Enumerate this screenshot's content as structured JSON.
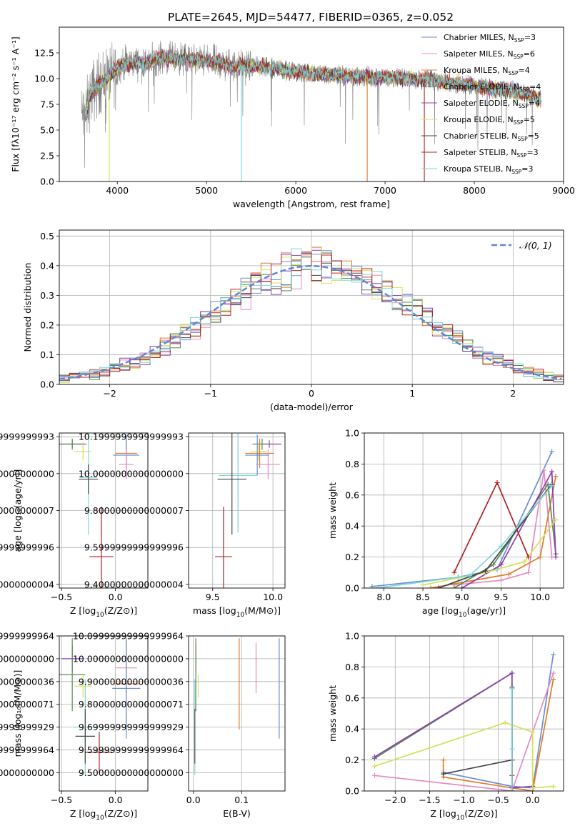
{
  "figure_title": "PLATE=2645, MJD=54477, FIBERID=0365, z=0.052",
  "chart_data": [
    {
      "id": "spectrum",
      "type": "line",
      "xlabel": "wavelength [Angstrom, rest frame]",
      "ylabel": "Flux [fλ10⁻¹⁷ erg cm⁻² s⁻¹ A⁻¹]",
      "xlim": [
        3350,
        9000
      ],
      "ylim": [
        0,
        15
      ],
      "xticks": [
        4000,
        5000,
        6000,
        7000,
        8000,
        9000
      ],
      "yticks": [
        0.0,
        2.5,
        5.0,
        7.5,
        10.0,
        12.5
      ],
      "grid": false,
      "legend_position": "right",
      "legend": [
        {
          "pre": "Chabrier MILES, N",
          "sub": "SSP",
          "post": "=3",
          "color": "#6a8fd6"
        },
        {
          "pre": "Salpeter MILES, N",
          "sub": "SSP",
          "post": "=6",
          "color": "#e78ac3"
        },
        {
          "pre": "Kroupa MILES, N",
          "sub": "SSP",
          "post": "=4",
          "color": "#e07b2a"
        },
        {
          "pre": "Chabrier ELODIE, N",
          "sub": "SSP",
          "post": "=4",
          "color": "#5b8a55"
        },
        {
          "pre": "Salpeter ELODIE, N",
          "sub": "SSP",
          "post": "=4",
          "color": "#8e3fb0"
        },
        {
          "pre": "Kroupa ELODIE, N",
          "sub": "SSP",
          "post": "=5",
          "color": "#d4e157"
        },
        {
          "pre": "Chabrier STELIB, N",
          "sub": "SSP",
          "post": "=5",
          "color": "#444444"
        },
        {
          "pre": "Salpeter STELIB, N",
          "sub": "SSP",
          "post": "=3",
          "color": "#b22222"
        },
        {
          "pre": "Kroupa STELIB, N",
          "sub": "SSP",
          "post": "=3",
          "color": "#7fd6d6"
        }
      ],
      "continuum": [
        [
          3650,
          6.5
        ],
        [
          3700,
          8.5
        ],
        [
          3800,
          9.5
        ],
        [
          3900,
          10.2
        ],
        [
          4000,
          11.0
        ],
        [
          4100,
          11.5
        ],
        [
          4200,
          11.6
        ],
        [
          4300,
          11.4
        ],
        [
          4400,
          11.8
        ],
        [
          4500,
          12.0
        ],
        [
          4700,
          11.9
        ],
        [
          4900,
          11.8
        ],
        [
          5100,
          11.6
        ],
        [
          5300,
          11.2
        ],
        [
          5500,
          11.2
        ],
        [
          5700,
          11.1
        ],
        [
          5900,
          10.8
        ],
        [
          6100,
          10.6
        ],
        [
          6300,
          10.4
        ],
        [
          6500,
          10.3
        ],
        [
          6700,
          10.2
        ],
        [
          6900,
          10.1
        ],
        [
          7100,
          10.1
        ],
        [
          7300,
          10.0
        ],
        [
          7500,
          9.9
        ],
        [
          7700,
          9.6
        ],
        [
          7900,
          9.4
        ],
        [
          8100,
          9.1
        ],
        [
          8300,
          8.9
        ],
        [
          8500,
          8.7
        ],
        [
          8750,
          8.0
        ]
      ],
      "data_range": [
        3600,
        8750
      ],
      "data_color": "#808080",
      "masked_regions": [
        {
          "x": 3910,
          "color": "#d4e157"
        },
        {
          "x": 5390,
          "color": "#7fd6d6"
        },
        {
          "x": 6800,
          "color": "#e07b2a"
        },
        {
          "x": 7440,
          "color": "#b22222"
        }
      ]
    },
    {
      "id": "residuals",
      "type": "histogram",
      "xlabel": "(data-model)/error",
      "ylabel": "Normed distribution",
      "xlim": [
        -2.5,
        2.5
      ],
      "ylim": [
        0,
        0.52
      ],
      "xticks": [
        -2,
        -1,
        0,
        1,
        2
      ],
      "yticks": [
        0.0,
        0.1,
        0.2,
        0.3,
        0.4,
        0.5
      ],
      "grid": true,
      "bin_width": 0.1,
      "legend_position": "top-right",
      "legend": [
        {
          "label": "𝒩(0, 1)",
          "color": "#5f87d6"
        }
      ]
    },
    {
      "id": "age_vs_Z",
      "type": "errorbar",
      "xlabel_pre": "Z [log",
      "xlabel_sub": "10",
      "xlabel_post": "(Z/Z⊙)]",
      "ylabel": "age  [log₁₀(age/yr)]",
      "xlim": [
        -0.52,
        0.3
      ],
      "ylim": [
        9.38,
        10.22
      ],
      "xticks": [
        -0.5,
        0.0
      ],
      "yticks": [
        9.4,
        9.6,
        9.8,
        10.0,
        10.2
      ],
      "grid": true,
      "points": [
        {
          "x": -0.4,
          "y": 10.16,
          "xerr": 0.13,
          "yerr": 0.02,
          "color": "#8e3fb0"
        },
        {
          "x": -0.4,
          "y": 10.16,
          "xerr": 0.1,
          "yerr": 0.03,
          "color": "#5b8a55"
        },
        {
          "x": -0.3,
          "y": 10.12,
          "xerr": 0.08,
          "yerr": 0.05,
          "color": "#d4e157"
        },
        {
          "x": 0.1,
          "y": 10.11,
          "xerr": 0.1,
          "yerr": 0.08,
          "color": "#e07b2a"
        },
        {
          "x": 0.1,
          "y": 10.1,
          "xerr": 0.12,
          "yerr": 0.11,
          "color": "#6a8fd6"
        },
        {
          "x": 0.1,
          "y": 10.05,
          "xerr": 0.07,
          "yerr": 0.08,
          "color": "#e78ac3"
        },
        {
          "x": -0.25,
          "y": 9.98,
          "xerr": 0.08,
          "yerr": 0.31,
          "color": "#7fd6d6"
        },
        {
          "x": -0.25,
          "y": 9.97,
          "xerr": 0.09,
          "yerr": 0.08,
          "color": "#444444"
        },
        {
          "x": -0.13,
          "y": 9.55,
          "xerr": 0.11,
          "yerr": 0.27,
          "color": "#b22222"
        }
      ]
    },
    {
      "id": "age_vs_mass",
      "type": "errorbar",
      "xlabel_pre": "mass [log",
      "xlabel_sub": "10",
      "xlabel_post": "(M/M⊙)]",
      "ylabel": "",
      "xlim": [
        9.3,
        10.1
      ],
      "ylim": [
        9.38,
        10.22
      ],
      "xticks": [
        9.5,
        10.0
      ],
      "yticks": [
        9.4,
        9.6,
        9.8,
        10.0,
        10.2
      ],
      "grid": true,
      "points": [
        {
          "x": 9.97,
          "y": 10.16,
          "xerr": 0.1,
          "yerr": 0.02,
          "color": "#8e3fb0"
        },
        {
          "x": 9.91,
          "y": 10.16,
          "xerr": 0.08,
          "yerr": 0.03,
          "color": "#5b8a55"
        },
        {
          "x": 9.88,
          "y": 10.12,
          "xerr": 0.07,
          "yerr": 0.05,
          "color": "#d4e157"
        },
        {
          "x": 9.89,
          "y": 10.11,
          "xerr": 0.12,
          "yerr": 0.08,
          "color": "#e07b2a"
        },
        {
          "x": 9.87,
          "y": 10.1,
          "xerr": 0.1,
          "yerr": 0.11,
          "color": "#6a8fd6"
        },
        {
          "x": 9.96,
          "y": 10.05,
          "xerr": 0.1,
          "yerr": 0.08,
          "color": "#e78ac3"
        },
        {
          "x": 9.71,
          "y": 9.99,
          "xerr": 0.16,
          "yerr": 0.31,
          "color": "#7fd6d6"
        },
        {
          "x": 9.66,
          "y": 9.97,
          "xerr": 0.12,
          "yerr": 0.3,
          "color": "#444444"
        },
        {
          "x": 9.59,
          "y": 9.55,
          "xerr": 0.07,
          "yerr": 0.27,
          "color": "#b22222"
        }
      ]
    },
    {
      "id": "mass_weight_vs_age",
      "type": "line",
      "xlabel_pre": "age  [log",
      "xlabel_sub": "10",
      "xlabel_post": "(age/yr)]",
      "ylabel": "mass weight",
      "xlim": [
        7.75,
        10.3
      ],
      "ylim": [
        0,
        1
      ],
      "xticks": [
        8.0,
        8.5,
        9.0,
        9.5,
        10.0
      ],
      "yticks": [
        0.0,
        0.2,
        0.4,
        0.6,
        0.8,
        1.0
      ],
      "grid": true,
      "series": [
        {
          "color": "#6a8fd6",
          "points": [
            [
              7.85,
              0.01
            ],
            [
              8.95,
              0.07
            ],
            [
              9.45,
              0.12
            ],
            [
              10.15,
              0.88
            ]
          ]
        },
        {
          "color": "#e78ac3",
          "points": [
            [
              8.9,
              0.02
            ],
            [
              9.5,
              0.05
            ],
            [
              9.85,
              0.1
            ],
            [
              10.05,
              0.76
            ],
            [
              10.15,
              0.2
            ]
          ]
        },
        {
          "color": "#e07b2a",
          "points": [
            [
              8.6,
              0.0
            ],
            [
              9.6,
              0.09
            ],
            [
              10.0,
              0.2
            ],
            [
              10.2,
              0.72
            ]
          ]
        },
        {
          "color": "#5b8a55",
          "points": [
            [
              8.9,
              0.0
            ],
            [
              9.4,
              0.15
            ],
            [
              10.1,
              0.67
            ],
            [
              10.2,
              0.22
            ]
          ]
        },
        {
          "color": "#8e3fb0",
          "points": [
            [
              9.0,
              0.0
            ],
            [
              9.5,
              0.15
            ],
            [
              10.15,
              0.75
            ],
            [
              10.2,
              0.2
            ]
          ]
        },
        {
          "color": "#d4e157",
          "points": [
            [
              8.5,
              0.02
            ],
            [
              9.3,
              0.1
            ],
            [
              9.8,
              0.17
            ],
            [
              10.2,
              0.44
            ]
          ]
        },
        {
          "color": "#444444",
          "points": [
            [
              8.7,
              0.0
            ],
            [
              9.3,
              0.11
            ],
            [
              10.15,
              0.67
            ]
          ]
        },
        {
          "color": "#b22222",
          "points": [
            [
              8.9,
              0.1
            ],
            [
              9.45,
              0.68
            ],
            [
              9.85,
              0.2
            ]
          ]
        },
        {
          "color": "#7fd6d6",
          "points": [
            [
              7.9,
              0.0
            ],
            [
              9.1,
              0.08
            ],
            [
              9.5,
              0.27
            ],
            [
              10.15,
              0.66
            ]
          ]
        }
      ]
    },
    {
      "id": "mass_vs_Z",
      "type": "errorbar",
      "xlabel_pre": "Z [log",
      "xlabel_sub": "10",
      "xlabel_post": "(Z/Z⊙)]",
      "ylabel": "mass [log₁₀(M/M⊙)]",
      "xlim": [
        -0.52,
        0.3
      ],
      "ylim": [
        9.42,
        10.1
      ],
      "xticks": [
        -0.5,
        0.0
      ],
      "yticks": [
        9.5,
        9.6,
        9.7,
        9.8,
        9.9,
        10.0,
        10.1
      ],
      "grid": true,
      "points": [
        {
          "x": -0.4,
          "y": 10.0,
          "xerr": 0.1,
          "yerr": 0.06,
          "color": "#8e3fb0"
        },
        {
          "x": -0.4,
          "y": 9.93,
          "xerr": 0.12,
          "yerr": 0.16,
          "color": "#5b8a55"
        },
        {
          "x": -0.3,
          "y": 9.88,
          "xerr": 0.08,
          "yerr": 0.05,
          "color": "#d4e157"
        },
        {
          "x": 0.1,
          "y": 9.96,
          "xerr": 0.1,
          "yerr": 0.11,
          "color": "#e78ac3"
        },
        {
          "x": 0.1,
          "y": 9.89,
          "xerr": 0.12,
          "yerr": 0.2,
          "color": "#e07b2a"
        },
        {
          "x": 0.1,
          "y": 9.87,
          "xerr": 0.13,
          "yerr": 0.22,
          "color": "#6a8fd6"
        },
        {
          "x": -0.28,
          "y": 9.7,
          "xerr": 0.11,
          "yerr": 0.21,
          "color": "#7fd6d6"
        },
        {
          "x": -0.28,
          "y": 9.66,
          "xerr": 0.09,
          "yerr": 0.12,
          "color": "#444444"
        },
        {
          "x": -0.15,
          "y": 9.59,
          "xerr": 0.12,
          "yerr": 0.09,
          "color": "#b22222"
        }
      ]
    },
    {
      "id": "mass_vs_ebv",
      "type": "errorbar",
      "xlabel": "E(B-V)",
      "ylabel": "",
      "xlim": [
        -0.01,
        0.19
      ],
      "ylim": [
        9.42,
        10.1
      ],
      "xticks": [
        0.0,
        0.1
      ],
      "yticks": [
        9.5,
        9.6,
        9.7,
        9.8,
        9.9,
        10.0,
        10.1
      ],
      "grid": true,
      "points": [
        {
          "x": 0.005,
          "y": 10.0,
          "xerr": 0.0,
          "yerr": 0.06,
          "color": "#8e3fb0"
        },
        {
          "x": 0.005,
          "y": 9.93,
          "xerr": 0.0,
          "yerr": 0.16,
          "color": "#5b8a55"
        },
        {
          "x": 0.01,
          "y": 9.88,
          "xerr": 0.0,
          "yerr": 0.05,
          "color": "#d4e157"
        },
        {
          "x": 0.13,
          "y": 9.96,
          "xerr": 0.0,
          "yerr": 0.11,
          "color": "#e78ac3"
        },
        {
          "x": 0.095,
          "y": 9.89,
          "xerr": 0.0,
          "yerr": 0.2,
          "color": "#e07b2a"
        },
        {
          "x": 0.178,
          "y": 9.87,
          "xerr": 0.0,
          "yerr": 0.22,
          "color": "#6a8fd6"
        },
        {
          "x": 0.003,
          "y": 9.7,
          "xerr": 0.0,
          "yerr": 0.21,
          "color": "#7fd6d6"
        },
        {
          "x": 0.003,
          "y": 9.66,
          "xerr": 0.0,
          "yerr": 0.12,
          "color": "#444444"
        }
      ]
    },
    {
      "id": "mass_weight_vs_Z",
      "type": "line",
      "xlabel_pre": "Z [log",
      "xlabel_sub": "10",
      "xlabel_post": "(Z/Z⊙)]",
      "ylabel": "mass weight",
      "xlim": [
        -2.45,
        0.45
      ],
      "ylim": [
        0,
        1
      ],
      "xticks": [
        -2.0,
        -1.5,
        -1.0,
        -0.5,
        0.0
      ],
      "yticks": [
        0.0,
        0.2,
        0.4,
        0.6,
        0.8,
        1.0
      ],
      "grid": true,
      "series": [
        {
          "color": "#6a8fd6",
          "points": [
            [
              -1.3,
              0.12
            ],
            [
              -0.3,
              0.03
            ],
            [
              0.0,
              0.02
            ],
            [
              0.3,
              0.88
            ]
          ]
        },
        {
          "color": "#e78ac3",
          "points": [
            [
              -2.3,
              0.1
            ],
            [
              -0.3,
              0.0
            ],
            [
              0.3,
              0.76
            ]
          ]
        },
        {
          "color": "#e07b2a",
          "points": [
            [
              -1.3,
              0.2
            ],
            [
              -1.3,
              0.09
            ],
            [
              -0.3,
              0.02
            ],
            [
              0.0,
              0.0
            ],
            [
              0.3,
              0.72
            ]
          ]
        },
        {
          "color": "#5b8a55",
          "points": [
            [
              -2.3,
              0.21
            ],
            [
              -0.3,
              0.76
            ],
            [
              -0.3,
              0.0
            ]
          ]
        },
        {
          "color": "#8e3fb0",
          "points": [
            [
              -2.3,
              0.22
            ],
            [
              -0.3,
              0.76
            ],
            [
              -0.3,
              0.02
            ],
            [
              0.0,
              0.03
            ]
          ]
        },
        {
          "color": "#d4e157",
          "points": [
            [
              -2.3,
              0.16
            ],
            [
              -0.4,
              0.44
            ],
            [
              0.0,
              0.38
            ],
            [
              0.0,
              0.02
            ],
            [
              0.3,
              0.03
            ]
          ]
        },
        {
          "color": "#444444",
          "points": [
            [
              -1.3,
              0.11
            ],
            [
              -0.3,
              0.2
            ],
            [
              -0.3,
              0.67
            ],
            [
              -0.3,
              0.0
            ]
          ]
        },
        {
          "color": "#b22222",
          "points": [
            [
              -0.3,
              0.1
            ],
            [
              -0.3,
              0.2
            ]
          ]
        },
        {
          "color": "#7fd6d6",
          "points": [
            [
              -0.3,
              0.0
            ],
            [
              -0.3,
              0.66
            ],
            [
              -0.3,
              0.27
            ]
          ]
        }
      ]
    }
  ]
}
